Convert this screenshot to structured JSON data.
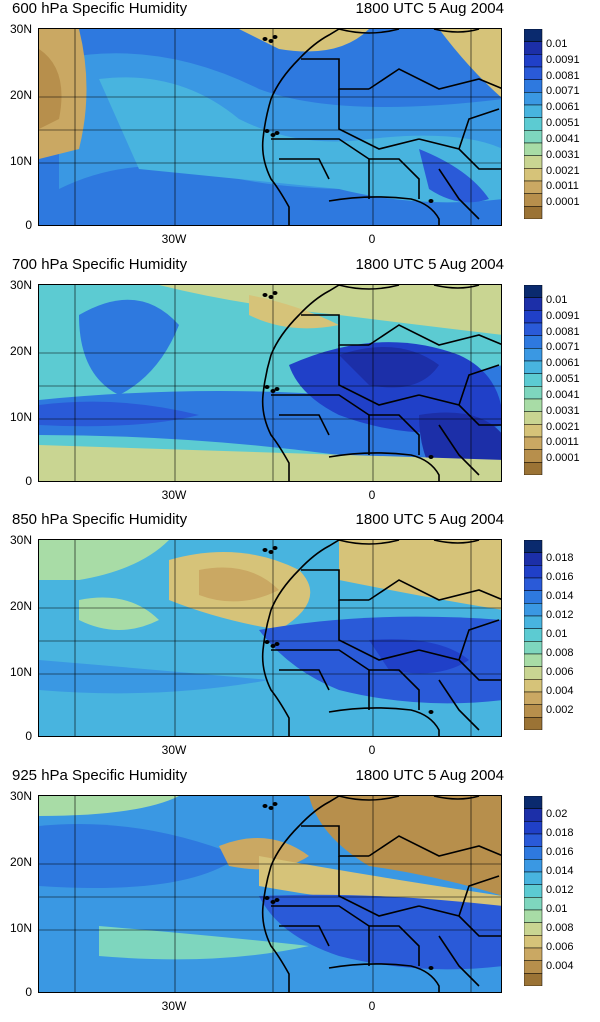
{
  "date": "1800 UTC 5 Aug 2004",
  "lat_labels": [
    "30N",
    "20N",
    "10N",
    "0"
  ],
  "lon_labels": [
    "30W",
    "0"
  ],
  "panels": [
    {
      "title": "600 hPa Specific Humidity",
      "levels": [
        "0.01",
        "0.0091",
        "0.0081",
        "0.0071",
        "0.0061",
        "0.0051",
        "0.0041",
        "0.0031",
        "0.0021",
        "0.0011",
        "0.0001"
      ],
      "colors": [
        "#0a2a6e",
        "#1c2fa8",
        "#2040c8",
        "#2a5ad8",
        "#2e79df",
        "#3a98e3",
        "#48b4df",
        "#5ccbd2",
        "#7ed6be",
        "#a8dca6",
        "#c9d592",
        "#d6c379",
        "#caa863",
        "#b78f4c",
        "#9b7335"
      ]
    },
    {
      "title": "700 hPa Specific Humidity",
      "levels": [
        "0.01",
        "0.0091",
        "0.0081",
        "0.0071",
        "0.0061",
        "0.0051",
        "0.0041",
        "0.0031",
        "0.0021",
        "0.0011",
        "0.0001"
      ],
      "colors": [
        "#0a2a6e",
        "#1c2fa8",
        "#2040c8",
        "#2a5ad8",
        "#2e79df",
        "#3a98e3",
        "#48b4df",
        "#5ccbd2",
        "#7ed6be",
        "#a8dca6",
        "#c9d592",
        "#d6c379",
        "#caa863",
        "#b78f4c",
        "#9b7335"
      ]
    },
    {
      "title": "850 hPa Specific Humidity",
      "levels": [
        "0.018",
        "0.016",
        "0.014",
        "0.012",
        "0.01",
        "0.008",
        "0.006",
        "0.004",
        "0.002"
      ],
      "colors": [
        "#0a2a6e",
        "#1c2fa8",
        "#2040c8",
        "#2a5ad8",
        "#2e79df",
        "#3a98e3",
        "#48b4df",
        "#5ccbd2",
        "#7ed6be",
        "#a8dca6",
        "#c9d592",
        "#d6c379",
        "#caa863",
        "#b78f4c",
        "#9b7335"
      ]
    },
    {
      "title": "925 hPa Specific Humidity",
      "levels": [
        "0.02",
        "0.018",
        "0.016",
        "0.014",
        "0.012",
        "0.01",
        "0.008",
        "0.006",
        "0.004"
      ],
      "colors": [
        "#0a2a6e",
        "#1c2fa8",
        "#2040c8",
        "#2a5ad8",
        "#2e79df",
        "#3a98e3",
        "#48b4df",
        "#5ccbd2",
        "#7ed6be",
        "#a8dca6",
        "#c9d592",
        "#d6c379",
        "#caa863",
        "#b78f4c",
        "#9b7335"
      ]
    }
  ]
}
